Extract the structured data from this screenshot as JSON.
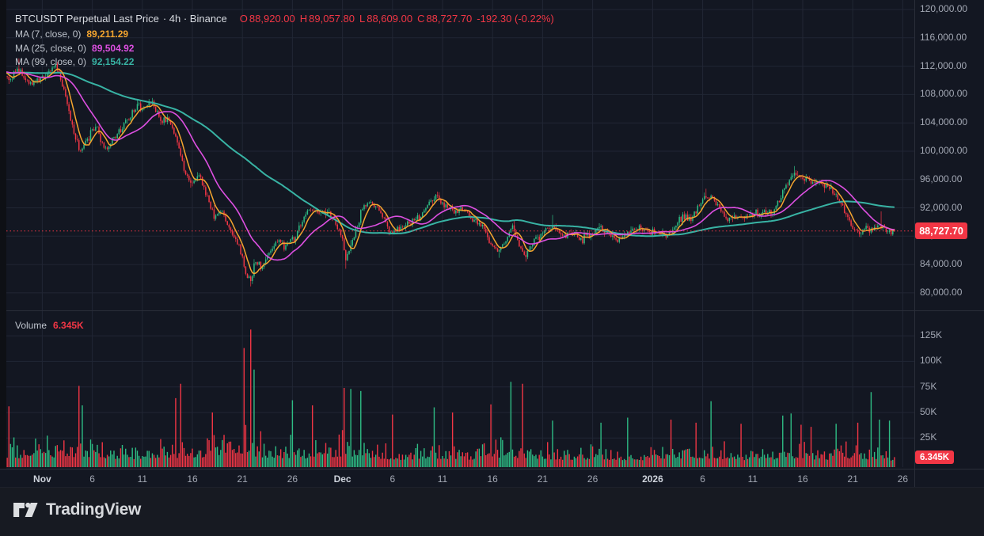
{
  "colors": {
    "up": "#2ebd85",
    "down": "#f23645",
    "ma7": "#f5a52f",
    "ma25": "#dd4fe1",
    "ma99": "#38b3a4",
    "grid": "#212634",
    "border": "#2a2e39",
    "axis_text": "#a3a8b4",
    "badge_text": "#ffffff",
    "background": "#131722"
  },
  "legend": {
    "symbol_title": "BTCUSDT Perpetual Last Price",
    "meta_text": "· 4h · Binance",
    "ohlc": {
      "o_label": "O",
      "o": "88,920.00",
      "h_label": "H",
      "h": "89,057.80",
      "l_label": "L",
      "l": "88,609.00",
      "c_label": "C",
      "c": "88,727.70",
      "change": "-192.30 (-0.22%)"
    },
    "mas": [
      {
        "label": "MA (7, close, 0)",
        "value": "89,211.29"
      },
      {
        "label": "MA (25, close, 0)",
        "value": "89,504.92"
      },
      {
        "label": "MA (99, close, 0)",
        "value": "92,154.22"
      }
    ]
  },
  "volume_legend": {
    "label": "Volume",
    "value": "6.345K"
  },
  "badges": {
    "price": "88,727.70",
    "volume": "6.345K"
  },
  "footer": {
    "brand": "TradingView"
  },
  "chart_data": {
    "type": "candlestick",
    "symbol": "BTCUSDT Perpetual",
    "interval": "4h",
    "exchange": "Binance",
    "last_candle": {
      "open": 88920.0,
      "high": 89057.8,
      "low": 88609.0,
      "close": 88727.7
    },
    "change": -192.3,
    "change_pct": -0.22,
    "last_price": 88727.7,
    "last_volume_k": 6.345,
    "ma_series": [
      {
        "period": 7,
        "source": "close",
        "offset": 0,
        "value": 89211.29
      },
      {
        "period": 25,
        "source": "close",
        "offset": 0,
        "value": 89504.92
      },
      {
        "period": 99,
        "source": "close",
        "offset": 0,
        "value": 92154.22
      }
    ],
    "price_ticks": [
      {
        "v": 120000,
        "t": "120,000.00"
      },
      {
        "v": 116000,
        "t": "116,000.00"
      },
      {
        "v": 112000,
        "t": "112,000.00"
      },
      {
        "v": 108000,
        "t": "108,000.00"
      },
      {
        "v": 104000,
        "t": "104,000.00"
      },
      {
        "v": 100000,
        "t": "100,000.00"
      },
      {
        "v": 96000,
        "t": "96,000.00"
      },
      {
        "v": 92000,
        "t": "92,000.00"
      },
      {
        "v": 88000,
        "t": "88,000.00"
      },
      {
        "v": 84000,
        "t": "84,000.00"
      },
      {
        "v": 80000,
        "t": "80,000.00"
      }
    ],
    "volume_ticks_k": [
      {
        "v": 125,
        "t": "125K"
      },
      {
        "v": 100,
        "t": "100K"
      },
      {
        "v": 75,
        "t": "75K"
      },
      {
        "v": 50,
        "t": "50K"
      },
      {
        "v": 25,
        "t": "25K"
      }
    ],
    "time_ticks": [
      {
        "d": 0,
        "t": "Nov",
        "major": true
      },
      {
        "d": 5,
        "t": "6"
      },
      {
        "d": 10,
        "t": "11"
      },
      {
        "d": 15,
        "t": "16"
      },
      {
        "d": 20,
        "t": "21"
      },
      {
        "d": 25,
        "t": "26"
      },
      {
        "d": 30,
        "t": "Dec",
        "major": true
      },
      {
        "d": 35,
        "t": "6"
      },
      {
        "d": 40,
        "t": "11"
      },
      {
        "d": 45,
        "t": "16"
      },
      {
        "d": 50,
        "t": "21"
      },
      {
        "d": 55,
        "t": "26"
      },
      {
        "d": 61,
        "t": "2026",
        "major": true
      },
      {
        "d": 66,
        "t": "6"
      },
      {
        "d": 71,
        "t": "11"
      },
      {
        "d": 76,
        "t": "16"
      },
      {
        "d": 81,
        "t": "21"
      },
      {
        "d": 86,
        "t": "26"
      }
    ],
    "start_day": -4.1667,
    "end_day": 85.3333,
    "candles_per_day": 6,
    "seed": 9,
    "pre_anchors": [
      [
        -21,
        109800
      ],
      [
        -15,
        110800
      ],
      [
        -10,
        111600
      ],
      [
        -6,
        111200
      ]
    ],
    "price_anchors": [
      [
        -4.2,
        111300
      ],
      [
        -3.3,
        110000
      ],
      [
        -2.4,
        111600
      ],
      [
        -1.2,
        109600
      ],
      [
        0.3,
        110600
      ],
      [
        1.4,
        112200
      ],
      [
        2.3,
        108000
      ],
      [
        3.0,
        103500
      ],
      [
        3.7,
        100000
      ],
      [
        4.5,
        101600
      ],
      [
        5.4,
        103900
      ],
      [
        6.2,
        99900
      ],
      [
        7.3,
        102000
      ],
      [
        8.4,
        104200
      ],
      [
        9.5,
        106300
      ],
      [
        10.2,
        105800
      ],
      [
        10.9,
        107000
      ],
      [
        11.8,
        104200
      ],
      [
        12.6,
        104600
      ],
      [
        13.5,
        101400
      ],
      [
        14.2,
        97200
      ],
      [
        15.0,
        95300
      ],
      [
        15.7,
        96700
      ],
      [
        16.5,
        93200
      ],
      [
        17.2,
        90600
      ],
      [
        18.0,
        91600
      ],
      [
        18.8,
        88600
      ],
      [
        19.6,
        87000
      ],
      [
        20.3,
        82900
      ],
      [
        20.85,
        81700
      ],
      [
        21.3,
        84600
      ],
      [
        22.0,
        83600
      ],
      [
        22.8,
        86100
      ],
      [
        23.6,
        87300
      ],
      [
        24.3,
        86400
      ],
      [
        25.4,
        88200
      ],
      [
        26.3,
        91000
      ],
      [
        27.0,
        91900
      ],
      [
        27.8,
        91100
      ],
      [
        28.5,
        91600
      ],
      [
        29.3,
        89900
      ],
      [
        30.0,
        87600
      ],
      [
        30.35,
        84900
      ],
      [
        31.2,
        88300
      ],
      [
        32.0,
        92000
      ],
      [
        32.8,
        92900
      ],
      [
        33.6,
        91900
      ],
      [
        34.3,
        90000
      ],
      [
        35.0,
        88300
      ],
      [
        36.0,
        89100
      ],
      [
        37.0,
        90200
      ],
      [
        38.0,
        91100
      ],
      [
        38.8,
        93000
      ],
      [
        39.5,
        93400
      ],
      [
        40.3,
        92100
      ],
      [
        41.2,
        91400
      ],
      [
        42.0,
        91800
      ],
      [
        43.0,
        90400
      ],
      [
        44.0,
        89400
      ],
      [
        44.8,
        86900
      ],
      [
        45.5,
        85800
      ],
      [
        46.3,
        87600
      ],
      [
        47.0,
        89400
      ],
      [
        47.8,
        86100
      ],
      [
        48.3,
        85200
      ],
      [
        49.0,
        87100
      ],
      [
        50.0,
        88600
      ],
      [
        51.0,
        89200
      ],
      [
        52.0,
        88100
      ],
      [
        53.0,
        88400
      ],
      [
        54.0,
        87600
      ],
      [
        55.0,
        88600
      ],
      [
        55.8,
        89400
      ],
      [
        56.6,
        88100
      ],
      [
        57.5,
        87400
      ],
      [
        58.5,
        88400
      ],
      [
        59.5,
        89500
      ],
      [
        60.5,
        88500
      ],
      [
        61.5,
        88700
      ],
      [
        62.5,
        88100
      ],
      [
        63.3,
        89600
      ],
      [
        64.0,
        90700
      ],
      [
        64.8,
        90400
      ],
      [
        65.6,
        92100
      ],
      [
        66.4,
        93800
      ],
      [
        67.0,
        93500
      ],
      [
        67.8,
        91600
      ],
      [
        68.5,
        90300
      ],
      [
        69.3,
        90900
      ],
      [
        70.2,
        90500
      ],
      [
        71.0,
        91300
      ],
      [
        72.0,
        91200
      ],
      [
        73.0,
        91600
      ],
      [
        73.8,
        93600
      ],
      [
        74.5,
        95600
      ],
      [
        75.2,
        96800
      ],
      [
        76.0,
        96200
      ],
      [
        77.0,
        95600
      ],
      [
        78.0,
        95200
      ],
      [
        78.8,
        94700
      ],
      [
        79.5,
        93400
      ],
      [
        80.3,
        91400
      ],
      [
        81.0,
        89000
      ],
      [
        81.7,
        88400
      ],
      [
        82.4,
        89400
      ],
      [
        83.0,
        89000
      ],
      [
        83.8,
        89300
      ],
      [
        84.4,
        88900
      ],
      [
        85.33,
        88727.7
      ]
    ],
    "wick_events": [
      [
        -2.4,
        "h",
        113100
      ],
      [
        20.85,
        "l",
        80900
      ],
      [
        30.35,
        "l",
        83400
      ],
      [
        39.5,
        "h",
        94300
      ],
      [
        45.6,
        "l",
        84950
      ],
      [
        48.3,
        "l",
        84400
      ],
      [
        51.0,
        "h",
        91000
      ],
      [
        66.4,
        "h",
        94700
      ],
      [
        75.2,
        "h",
        97900
      ],
      [
        83.8,
        "h",
        91500
      ]
    ],
    "volume_base_k": [
      [
        -4.2,
        16
      ],
      [
        0,
        18
      ],
      [
        4,
        22
      ],
      [
        8,
        14
      ],
      [
        12,
        16
      ],
      [
        16,
        20
      ],
      [
        20,
        28
      ],
      [
        22,
        20
      ],
      [
        26,
        16
      ],
      [
        30,
        22
      ],
      [
        33,
        16
      ],
      [
        36,
        12
      ],
      [
        39,
        16
      ],
      [
        43,
        12
      ],
      [
        45,
        20
      ],
      [
        48,
        18
      ],
      [
        52,
        12
      ],
      [
        56,
        12
      ],
      [
        60,
        11
      ],
      [
        64,
        14
      ],
      [
        67,
        16
      ],
      [
        70,
        11
      ],
      [
        73,
        13
      ],
      [
        75,
        16
      ],
      [
        78,
        11
      ],
      [
        81,
        16
      ],
      [
        83,
        13
      ],
      [
        85.3,
        7
      ]
    ],
    "volume_spikes_k": [
      [
        -3.3,
        56
      ],
      [
        3.75,
        76
      ],
      [
        4.08,
        57
      ],
      [
        13.3,
        64
      ],
      [
        13.9,
        78
      ],
      [
        17.0,
        50
      ],
      [
        20.2,
        113
      ],
      [
        20.87,
        131
      ],
      [
        21.2,
        92
      ],
      [
        25.0,
        62
      ],
      [
        27.0,
        57
      ],
      [
        30.25,
        74
      ],
      [
        30.9,
        73
      ],
      [
        31.9,
        71
      ],
      [
        35.0,
        48
      ],
      [
        39.2,
        55
      ],
      [
        41.0,
        50
      ],
      [
        44.8,
        58
      ],
      [
        46.8,
        80
      ],
      [
        48.0,
        78
      ],
      [
        51.0,
        42
      ],
      [
        55.8,
        40
      ],
      [
        58.5,
        45
      ],
      [
        62.8,
        43
      ],
      [
        65.3,
        40
      ],
      [
        66.9,
        61
      ],
      [
        69.8,
        39
      ],
      [
        74.0,
        47
      ],
      [
        74.8,
        49
      ],
      [
        75.9,
        38
      ],
      [
        76.9,
        36
      ],
      [
        79.3,
        39
      ],
      [
        81.5,
        40
      ],
      [
        82.8,
        70
      ],
      [
        83.6,
        43
      ],
      [
        84.7,
        42
      ]
    ]
  }
}
